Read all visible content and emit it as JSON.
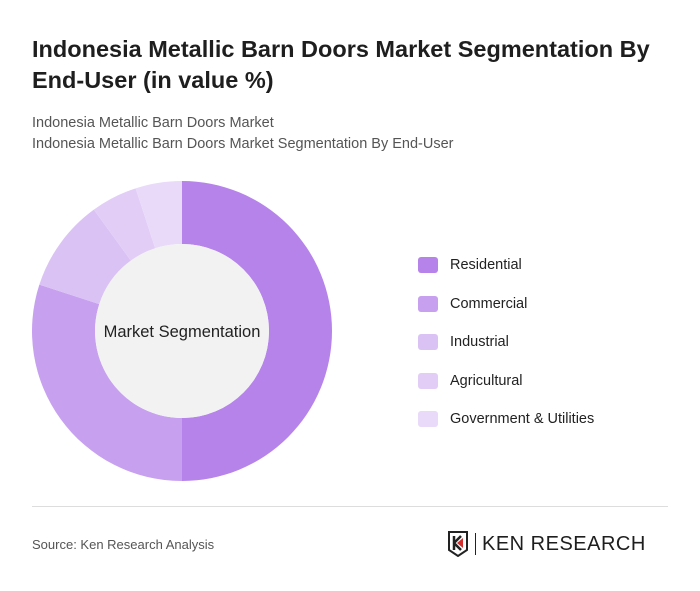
{
  "title": "Indonesia Metallic Barn Doors Market Segmentation By End-User (in value %)",
  "subtitle1": "Indonesia Metallic Barn Doors Market",
  "subtitle2": "Indonesia Metallic Barn Doors Market Segmentation By End-User",
  "source": "Source: Ken Research Analysis",
  "logo_text": "KEN RESEARCH",
  "chart_data": {
    "type": "pie",
    "center_label": "Market Segmentation",
    "legend_position": "right",
    "categories": [
      "Residential",
      "Commercial",
      "Industrial",
      "Agricultural",
      "Government & Utilities"
    ],
    "values": [
      50,
      30,
      10,
      5,
      5
    ],
    "colors": [
      "#b583ea",
      "#c7a0ef",
      "#dac2f5",
      "#e2cdf7",
      "#e9dafa"
    ]
  }
}
